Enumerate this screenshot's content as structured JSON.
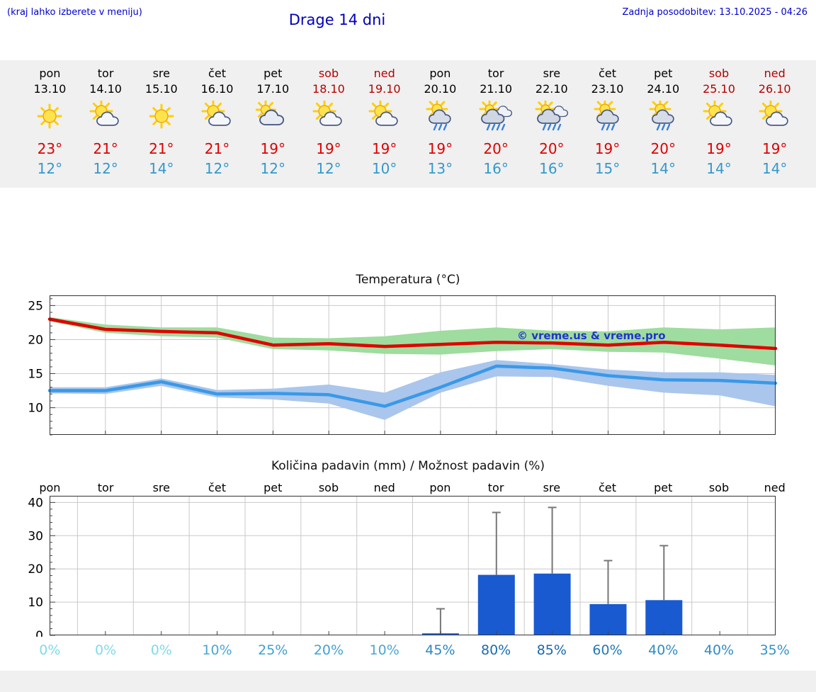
{
  "header": {
    "menu_hint": "(kraj lahko izberete v meniju)",
    "title": "Drage 14 dni",
    "last_update": "Zadnja posodobitev: 13.10.2025 - 04:26"
  },
  "colors": {
    "link_blue": "#0000cc",
    "high_red": "#dd0000",
    "low_blue": "#3399cc",
    "weekend_red": "#b50000",
    "strip_gray": "#f0f0f0"
  },
  "forecast": {
    "days": [
      {
        "name": "pon",
        "date": "13.10",
        "weekend": false,
        "icon": "sun",
        "high": "23°",
        "low": "12°"
      },
      {
        "name": "tor",
        "date": "14.10",
        "weekend": false,
        "icon": "partly-sunny",
        "high": "21°",
        "low": "12°"
      },
      {
        "name": "sre",
        "date": "15.10",
        "weekend": false,
        "icon": "sun",
        "high": "21°",
        "low": "14°"
      },
      {
        "name": "čet",
        "date": "16.10",
        "weekend": false,
        "icon": "partly-sunny",
        "high": "21°",
        "low": "12°"
      },
      {
        "name": "pet",
        "date": "17.10",
        "weekend": false,
        "icon": "mostly-cloudy",
        "high": "19°",
        "low": "12°"
      },
      {
        "name": "sob",
        "date": "18.10",
        "weekend": true,
        "icon": "partly-sunny",
        "high": "19°",
        "low": "12°"
      },
      {
        "name": "ned",
        "date": "19.10",
        "weekend": true,
        "icon": "partly-sunny",
        "high": "19°",
        "low": "10°"
      },
      {
        "name": "pon",
        "date": "20.10",
        "weekend": false,
        "icon": "sun-shower",
        "high": "19°",
        "low": "13°"
      },
      {
        "name": "tor",
        "date": "21.10",
        "weekend": false,
        "icon": "rain",
        "high": "20°",
        "low": "16°"
      },
      {
        "name": "sre",
        "date": "22.10",
        "weekend": false,
        "icon": "rain",
        "high": "20°",
        "low": "16°"
      },
      {
        "name": "čet",
        "date": "23.10",
        "weekend": false,
        "icon": "sun-shower",
        "high": "19°",
        "low": "15°"
      },
      {
        "name": "pet",
        "date": "24.10",
        "weekend": false,
        "icon": "sun-shower",
        "high": "20°",
        "low": "14°"
      },
      {
        "name": "sob",
        "date": "25.10",
        "weekend": true,
        "icon": "partly-sunny",
        "high": "19°",
        "low": "14°"
      },
      {
        "name": "ned",
        "date": "26.10",
        "weekend": true,
        "icon": "partly-sunny",
        "high": "19°",
        "low": "14°"
      }
    ]
  },
  "chart_data": [
    {
      "type": "line",
      "title": "Temperatura (°C)",
      "watermark": "© vreme.us & vreme.pro",
      "x_categories": [
        "pon",
        "tor",
        "sre",
        "čet",
        "pet",
        "sob",
        "ned",
        "pon",
        "tor",
        "sre",
        "čet",
        "pet",
        "sob",
        "ned"
      ],
      "ylim": [
        6,
        26.5
      ],
      "yticks": [
        10,
        15,
        20,
        25
      ],
      "grid": true,
      "legend_position": "none",
      "series": [
        {
          "name": "max-temp",
          "color": "#e00000",
          "values": [
            23,
            21.5,
            21.2,
            21,
            19.2,
            19.4,
            19,
            19.3,
            19.6,
            19.5,
            19.2,
            19.6,
            19.2,
            18.7
          ]
        },
        {
          "name": "min-temp",
          "color": "#3a99e8",
          "values": [
            12.5,
            12.5,
            13.8,
            12,
            12.1,
            11.9,
            10.2,
            13,
            16.1,
            15.8,
            14.7,
            14.1,
            14,
            13.6
          ]
        }
      ],
      "bands": [
        {
          "name": "max-temp-range",
          "color": "#9fdc9f",
          "upper": [
            23.3,
            22.2,
            21.8,
            21.8,
            20.3,
            20.2,
            20.5,
            21.3,
            21.8,
            21.3,
            21.2,
            21.8,
            21.5,
            21.8
          ],
          "lower": [
            22.7,
            21.0,
            20.5,
            20.3,
            18.6,
            18.4,
            17.9,
            17.8,
            18.3,
            18.6,
            18.2,
            18.1,
            17.2,
            16.2
          ]
        },
        {
          "name": "min-temp-range",
          "color": "#aac6ec",
          "upper": [
            13.0,
            13.0,
            14.3,
            12.6,
            12.8,
            13.4,
            12.2,
            15.2,
            17.0,
            16.4,
            15.6,
            15.2,
            15.2,
            14.8
          ],
          "lower": [
            12.1,
            12.0,
            13.2,
            11.5,
            11.2,
            10.6,
            8.2,
            12.2,
            14.6,
            14.5,
            13.2,
            12.2,
            11.8,
            10.2
          ]
        }
      ]
    },
    {
      "type": "bar",
      "title": "Količina padavin (mm) / Možnost padavin (%)",
      "categories": [
        "pon",
        "tor",
        "sre",
        "čet",
        "pet",
        "sob",
        "ned",
        "pon",
        "tor",
        "sre",
        "čet",
        "pet",
        "sob",
        "ned"
      ],
      "values": [
        0,
        0,
        0,
        0.15,
        0.2,
        0.2,
        0.15,
        0.6,
        18.2,
        18.6,
        9.4,
        10.6,
        0.15,
        0.15
      ],
      "whisker_max": [
        0,
        0,
        0,
        0,
        0,
        0,
        0,
        8,
        37,
        38.5,
        22.5,
        27,
        0,
        0
      ],
      "bar_color": "#1a5ad0",
      "whisker_color": "#777777",
      "ylim": [
        0,
        42
      ],
      "yticks": [
        0,
        10,
        20,
        30,
        40
      ],
      "grid": true,
      "probabilities": [
        {
          "label": "0%",
          "color": "#7fdbe8"
        },
        {
          "label": "0%",
          "color": "#7fdbe8"
        },
        {
          "label": "0%",
          "color": "#7fdbe8"
        },
        {
          "label": "10%",
          "color": "#4aa6d6"
        },
        {
          "label": "25%",
          "color": "#3f9fd2"
        },
        {
          "label": "20%",
          "color": "#42a2d4"
        },
        {
          "label": "10%",
          "color": "#4aa6d6"
        },
        {
          "label": "45%",
          "color": "#2c87c3"
        },
        {
          "label": "80%",
          "color": "#1b6cb1"
        },
        {
          "label": "85%",
          "color": "#1968ae"
        },
        {
          "label": "60%",
          "color": "#2379b9"
        },
        {
          "label": "40%",
          "color": "#2f8cc7"
        },
        {
          "label": "40%",
          "color": "#2f8cc7"
        },
        {
          "label": "35%",
          "color": "#3493cb"
        }
      ]
    }
  ]
}
